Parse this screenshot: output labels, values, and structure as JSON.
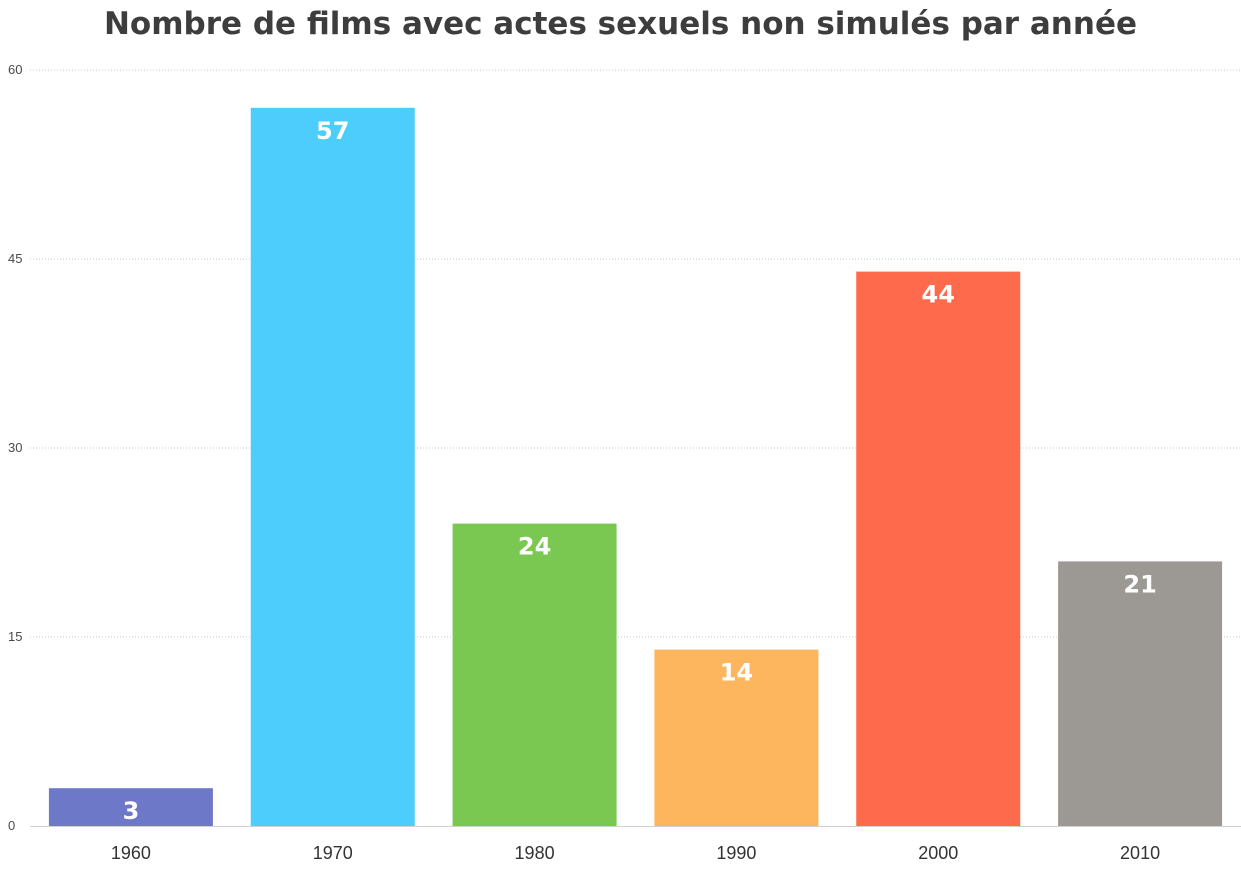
{
  "chart_data": {
    "type": "bar",
    "title": "Nombre de films avec actes sexuels non simulés par année",
    "xlabel": "",
    "ylabel": "",
    "categories": [
      "1960",
      "1970",
      "1980",
      "1990",
      "2000",
      "2010"
    ],
    "values": [
      3,
      57,
      24,
      14,
      44,
      21
    ],
    "colors": [
      "#6e78c8",
      "#4dcdfc",
      "#7ac852",
      "#fdb55e",
      "#fe6a4c",
      "#9c9893"
    ],
    "ylim": [
      0,
      60
    ],
    "yticks": [
      0,
      15,
      30,
      45,
      60
    ],
    "grid": true,
    "legend": "none",
    "data_labels": true
  }
}
